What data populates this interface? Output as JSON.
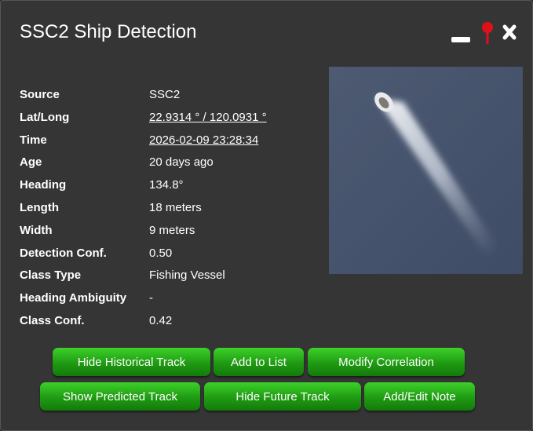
{
  "header": {
    "title": "SSC2 Ship Detection"
  },
  "details": {
    "rows": [
      [
        "Source",
        "SSC2"
      ],
      [
        "Lat/Long",
        "22.9314 ° / 120.0931 °"
      ],
      [
        "Time",
        "2026-02-09 23:28:34"
      ],
      [
        "Age",
        "20 days ago"
      ],
      [
        "Heading",
        "134.8°"
      ],
      [
        "Length",
        "18 meters"
      ],
      [
        "Width",
        "9 meters"
      ],
      [
        "Detection Conf.",
        "0.50"
      ],
      [
        "Class Type",
        "Fishing Vessel"
      ],
      [
        "Heading Ambiguity",
        "-"
      ],
      [
        "Class Conf.",
        "0.42"
      ]
    ]
  },
  "actions": {
    "rows": [
      [
        "Hide Historical Track",
        "Add to List",
        "Modify Correlation"
      ],
      [
        "Show Predicted Track",
        "Hide Future Track",
        "Add/Edit Note"
      ]
    ]
  }
}
